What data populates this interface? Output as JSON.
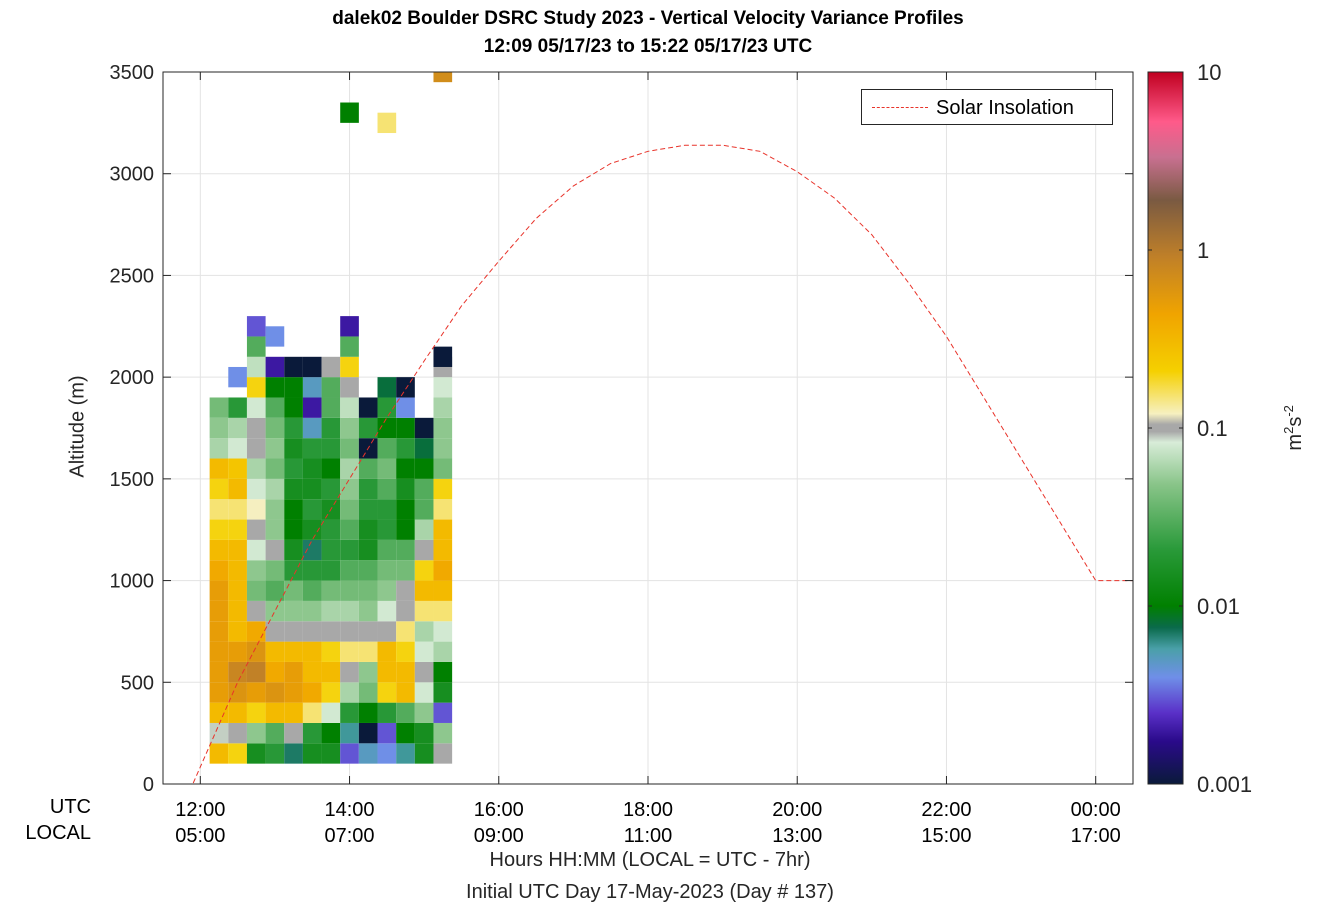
{
  "title_line1": "dalek02 Boulder DSRC Study 2023 - Vertical Velocity Variance Profiles",
  "title_line2": "12:09 05/17/23 to 15:22 05/17/23  UTC",
  "ylabel": "Altitude (m)",
  "xlabel": "Hours HH:MM  (LOCAL = UTC - 7hr)",
  "xlabel2": "Initial UTC Day 17-May-2023 (Day # 137)",
  "row_label_utc": "UTC",
  "row_label_local": "LOCAL",
  "legend_label": "Solar Insolation",
  "colorbar_label_base": "m",
  "colorbar_label_sup1": "2",
  "colorbar_label_s": "s",
  "colorbar_label_sup2": "-2",
  "chart_data": {
    "type": "heatmap",
    "title": "dalek02 Boulder DSRC Study 2023 - Vertical Velocity Variance Profiles",
    "xlim_utc_hours": [
      11.5,
      24.5
    ],
    "ylim": [
      0,
      3500
    ],
    "yticks": [
      0,
      500,
      1000,
      1500,
      2000,
      2500,
      3000,
      3500
    ],
    "xticks_utc": [
      "12:00",
      "14:00",
      "16:00",
      "18:00",
      "20:00",
      "22:00",
      "00:00"
    ],
    "xticks_local": [
      "05:00",
      "07:00",
      "09:00",
      "11:00",
      "13:00",
      "15:00",
      "17:00"
    ],
    "xtick_hours": [
      12,
      14,
      16,
      18,
      20,
      22,
      24
    ],
    "grid": true,
    "colorbar": {
      "scale": "log",
      "min": 0.001,
      "max": 10,
      "tick_labels": [
        "10",
        "1",
        "0.1",
        "0.01",
        "0.001"
      ]
    },
    "legend_position": "top-right",
    "variance_profiles": [
      {
        "time_utc": "12:15",
        "altitude_m": [
          150,
          250,
          350,
          450,
          550,
          650,
          750,
          850,
          950,
          1050,
          1150,
          1250,
          1350,
          1450,
          1550,
          1650,
          1750,
          1850
        ],
        "variance_m2s2": [
          0.3,
          0.09,
          0.3,
          0.5,
          0.5,
          0.5,
          0.5,
          0.5,
          0.5,
          0.4,
          0.3,
          0.2,
          0.15,
          0.2,
          0.3,
          0.06,
          0.05,
          0.04
        ]
      },
      {
        "time_utc": "12:30",
        "altitude_m": [
          150,
          250,
          350,
          450,
          550,
          650,
          750,
          850,
          950,
          1050,
          1150,
          1250,
          1350,
          1450,
          1550,
          1650,
          1750,
          1850,
          2000
        ],
        "variance_m2s2": [
          0.2,
          0.1,
          0.3,
          0.6,
          0.8,
          0.5,
          0.3,
          0.3,
          0.3,
          0.3,
          0.3,
          0.2,
          0.15,
          0.3,
          0.25,
          0.08,
          0.06,
          0.02,
          0.004
        ]
      },
      {
        "time_utc": "12:45",
        "altitude_m": [
          150,
          250,
          350,
          450,
          550,
          650,
          750,
          850,
          950,
          1050,
          1150,
          1250,
          1350,
          1450,
          1550,
          1650,
          1750,
          1850,
          1950,
          2050,
          2150,
          2250
        ],
        "variance_m2s2": [
          0.015,
          0.05,
          0.2,
          0.5,
          0.9,
          0.6,
          0.4,
          0.1,
          0.04,
          0.05,
          0.08,
          0.1,
          0.12,
          0.08,
          0.06,
          0.1,
          0.1,
          0.08,
          0.2,
          0.07,
          0.03,
          0.003
        ]
      },
      {
        "time_utc": "13:00",
        "altitude_m": [
          150,
          250,
          350,
          450,
          550,
          650,
          750,
          850,
          950,
          1050,
          1150,
          1250,
          1350,
          1450,
          1550,
          1650,
          1750,
          1850,
          1950,
          2050,
          2200
        ],
        "variance_m2s2": [
          0.02,
          0.03,
          0.3,
          0.6,
          0.4,
          0.3,
          0.1,
          0.05,
          0.03,
          0.04,
          0.1,
          0.05,
          0.05,
          0.06,
          0.04,
          0.05,
          0.04,
          0.03,
          0.01,
          0.002,
          0.004
        ]
      },
      {
        "time_utc": "13:15",
        "altitude_m": [
          150,
          250,
          350,
          450,
          550,
          650,
          750,
          850,
          950,
          1050,
          1150,
          1250,
          1350,
          1450,
          1550,
          1650,
          1750,
          1850,
          1950,
          2050
        ],
        "variance_m2s2": [
          0.007,
          0.1,
          0.3,
          0.5,
          0.5,
          0.3,
          0.1,
          0.05,
          0.04,
          0.02,
          0.015,
          0.01,
          0.01,
          0.015,
          0.02,
          0.015,
          0.02,
          0.01,
          0.01,
          0.001
        ]
      },
      {
        "time_utc": "13:30",
        "altitude_m": [
          150,
          250,
          350,
          450,
          550,
          650,
          750,
          850,
          950,
          1050,
          1150,
          1250,
          1350,
          1450,
          1550,
          1650,
          1750,
          1850,
          1950,
          2050
        ],
        "variance_m2s2": [
          0.015,
          0.02,
          0.15,
          0.4,
          0.3,
          0.3,
          0.1,
          0.05,
          0.03,
          0.02,
          0.007,
          0.015,
          0.02,
          0.015,
          0.015,
          0.02,
          0.005,
          0.002,
          0.005,
          0.001
        ]
      },
      {
        "time_utc": "13:45",
        "altitude_m": [
          150,
          250,
          350,
          450,
          550,
          650,
          750,
          850,
          950,
          1050,
          1150,
          1250,
          1350,
          1450,
          1550,
          1650,
          1750,
          1850,
          1950,
          2050
        ],
        "variance_m2s2": [
          0.015,
          0.01,
          0.08,
          0.2,
          0.3,
          0.2,
          0.1,
          0.06,
          0.04,
          0.02,
          0.02,
          0.02,
          0.015,
          0.02,
          0.01,
          0.02,
          0.02,
          0.03,
          0.03,
          0.1
        ]
      },
      {
        "time_utc": "14:00",
        "altitude_m": [
          150,
          250,
          350,
          450,
          550,
          650,
          750,
          850,
          950,
          1050,
          1150,
          1250,
          1350,
          1450,
          1550,
          1650,
          1750,
          1850,
          1950,
          2050,
          2150,
          2250,
          3300
        ],
        "variance_m2s2": [
          0.003,
          0.006,
          0.02,
          0.06,
          0.1,
          0.15,
          0.1,
          0.06,
          0.04,
          0.03,
          0.02,
          0.03,
          0.04,
          0.05,
          0.06,
          0.04,
          0.05,
          0.07,
          0.1,
          0.2,
          0.03,
          0.002,
          0.01
        ]
      },
      {
        "time_utc": "14:15",
        "altitude_m": [
          150,
          250,
          350,
          450,
          550,
          650,
          750,
          850,
          950,
          1050,
          1150,
          1250,
          1350,
          1450,
          1550,
          1650,
          1750,
          1850
        ],
        "variance_m2s2": [
          0.005,
          0.001,
          0.01,
          0.04,
          0.05,
          0.15,
          0.1,
          0.05,
          0.04,
          0.03,
          0.015,
          0.015,
          0.02,
          0.02,
          0.03,
          0.001,
          0.02,
          0.001
        ]
      },
      {
        "time_utc": "14:30",
        "altitude_m": [
          150,
          250,
          350,
          450,
          550,
          650,
          750,
          850,
          950,
          1050,
          1150,
          1250,
          1350,
          1450,
          1550,
          1650,
          1750,
          1850,
          1950,
          3250
        ],
        "variance_m2s2": [
          0.004,
          0.003,
          0.02,
          0.2,
          0.3,
          0.3,
          0.1,
          0.08,
          0.05,
          0.04,
          0.03,
          0.02,
          0.02,
          0.03,
          0.04,
          0.03,
          0.01,
          0.02,
          0.008,
          0.15
        ]
      },
      {
        "time_utc": "14:45",
        "altitude_m": [
          150,
          250,
          350,
          450,
          550,
          650,
          750,
          850,
          950,
          1050,
          1150,
          1250,
          1350,
          1450,
          1550,
          1650,
          1750,
          1850,
          1950
        ],
        "variance_m2s2": [
          0.006,
          0.01,
          0.03,
          0.3,
          0.3,
          0.2,
          0.15,
          0.1,
          0.1,
          0.04,
          0.03,
          0.01,
          0.01,
          0.015,
          0.01,
          0.02,
          0.01,
          0.004,
          0.001
        ]
      },
      {
        "time_utc": "15:00",
        "altitude_m": [
          150,
          250,
          350,
          450,
          550,
          650,
          750,
          850,
          950,
          1050,
          1150,
          1250,
          1350,
          1450,
          1550,
          1650,
          1750
        ],
        "variance_m2s2": [
          0.015,
          0.015,
          0.05,
          0.08,
          0.1,
          0.08,
          0.06,
          0.15,
          0.3,
          0.2,
          0.1,
          0.06,
          0.03,
          0.03,
          0.01,
          0.008,
          0.001
        ]
      },
      {
        "time_utc": "15:15",
        "altitude_m": [
          150,
          250,
          350,
          450,
          550,
          650,
          750,
          850,
          950,
          1050,
          1150,
          1250,
          1350,
          1450,
          1550,
          1650,
          1750,
          1850,
          1950,
          2050,
          2100,
          3500
        ],
        "variance_m2s2": [
          0.1,
          0.05,
          0.003,
          0.015,
          0.01,
          0.06,
          0.08,
          0.15,
          0.3,
          0.4,
          0.3,
          0.3,
          0.15,
          0.2,
          0.04,
          0.05,
          0.05,
          0.06,
          0.08,
          0.1,
          0.001,
          0.7
        ]
      }
    ],
    "series": [
      {
        "name": "Solar Insolation",
        "style": "dashed",
        "color": "#e8332a",
        "x_utc_hours": [
          11.7,
          11.9,
          12.5,
          13.0,
          13.5,
          14.0,
          14.5,
          15.0,
          15.5,
          16.0,
          16.5,
          17.0,
          17.5,
          18.0,
          18.5,
          19.0,
          19.5,
          20.0,
          20.5,
          21.0,
          21.5,
          22.0,
          22.5,
          23.0,
          23.5,
          24.0,
          24.5
        ],
        "y_altitude_m": [
          0,
          0,
          500,
          850,
          1200,
          1500,
          1800,
          2080,
          2350,
          2570,
          2780,
          2940,
          3050,
          3110,
          3140,
          3140,
          3110,
          3010,
          2880,
          2700,
          2460,
          2200,
          1900,
          1600,
          1300,
          1000,
          1000
        ]
      }
    ]
  }
}
